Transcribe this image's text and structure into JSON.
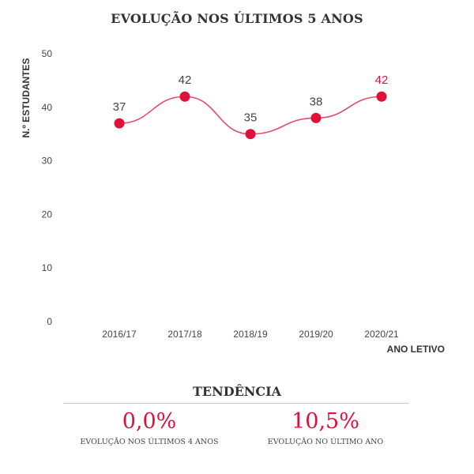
{
  "colors": {
    "accent": "#e0103a",
    "label_dark": "#444444",
    "line": "#e64a6a"
  },
  "chart_data": {
    "type": "line",
    "title": "EVOLUÇÃO NOS ÚLTIMOS 5 ANOS",
    "xlabel": "ANO LETIVO",
    "ylabel": "N.º ESTUDANTES",
    "categories": [
      "2016/17",
      "2017/18",
      "2018/19",
      "2019/20",
      "2020/21"
    ],
    "series": [
      {
        "values": [
          37,
          42,
          35,
          38,
          42
        ]
      }
    ],
    "ylim": [
      0,
      50
    ],
    "yticks": [
      0,
      10,
      20,
      30,
      40,
      50
    ],
    "grid": false,
    "highlight_last_label": true
  },
  "trend": {
    "title": "TENDÊNCIA",
    "stats": [
      {
        "value": "0,0%",
        "caption": "EVOLUÇÃO NOS ÚLTIMOS 4 ANOS"
      },
      {
        "value": "10,5%",
        "caption": "EVOLUÇÃO NO ÚLTIMO ANO"
      }
    ]
  }
}
